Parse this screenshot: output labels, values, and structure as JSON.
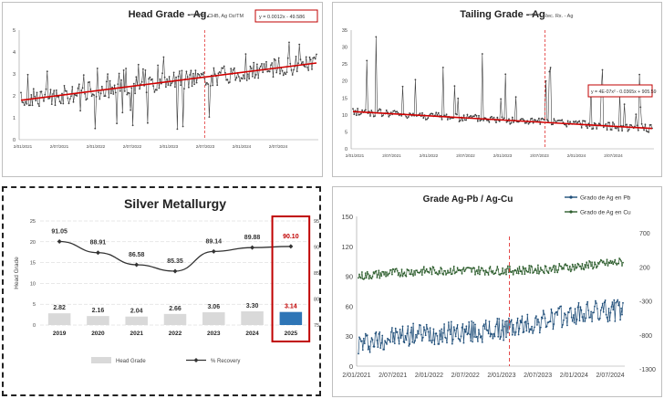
{
  "chart_data": [
    {
      "id": "head-grade",
      "type": "line",
      "title": "Head Grade - Ag.",
      "legend": "CHB, Ag Oz/TM",
      "equation": "y = 0.0012x - 49.586",
      "x_tick_labels": [
        "2/01/2021",
        "2/07/2021",
        "2/01/2022",
        "2/07/2022",
        "2/01/2023",
        "2/07/2023",
        "2/01/2024",
        "2/07/2024"
      ],
      "y_tick_labels": [
        "0",
        "1",
        "2",
        "3",
        "4",
        "5"
      ],
      "ylim": [
        0,
        5
      ],
      "trend": {
        "start": 1.8,
        "end": 3.5
      },
      "marker_position": 0.62,
      "colors": {
        "series": "#404040",
        "trend": "#d00000",
        "marker": "#e03030"
      }
    },
    {
      "id": "tailing-grade",
      "type": "line",
      "title": "Tailing Grade - Ag",
      "legend": "Rec. Rx. - Ag",
      "equation": "y = 4E-07x² - 0.0365x + 905.59",
      "x_tick_labels": [
        "2/01/2021",
        "2/07/2021",
        "2/01/2022",
        "2/07/2022",
        "2/01/2023",
        "2/07/2023",
        "2/01/2024",
        "2/07/2024"
      ],
      "y_tick_labels": [
        "0",
        "5",
        "10",
        "15",
        "20",
        "25",
        "30",
        "35"
      ],
      "ylim": [
        0,
        35
      ],
      "trend": {
        "start": 11,
        "end": 6
      },
      "marker_position": 0.64,
      "colors": {
        "series": "#404040",
        "trend": "#d00000",
        "marker": "#e03030"
      }
    },
    {
      "id": "silver-metallurgy",
      "type": "bar",
      "title": "Silver Metallurgy",
      "ylabel": "Head Grade",
      "categories": [
        "2019",
        "2020",
        "2021",
        "2022",
        "2023",
        "2024",
        "2025"
      ],
      "series": [
        {
          "name": "Head Grade",
          "values": [
            2.82,
            2.16,
            2.04,
            2.66,
            3.06,
            3.3,
            3.14
          ],
          "labels": [
            "2.82",
            "2.16",
            "2.04",
            "2.66",
            "3.06",
            "3.30",
            "3.14"
          ]
        },
        {
          "name": "% Recovery",
          "values": [
            91.05,
            88.91,
            86.58,
            85.35,
            89.14,
            89.88,
            90.1
          ],
          "labels": [
            "91.05",
            "88.91",
            "86.58",
            "85.35",
            "89.14",
            "89.88",
            "90.10"
          ]
        }
      ],
      "ylim": [
        0,
        25
      ],
      "y2lim": [
        75,
        95
      ],
      "y_tick_labels": [
        "0",
        "5",
        "10",
        "15",
        "20",
        "25"
      ],
      "y2_tick_labels": [
        "75",
        "80",
        "85",
        "90",
        "95"
      ],
      "highlight": "2025",
      "colors": {
        "bar": "#d9d9d9",
        "bar_highlight": "#2e75b6",
        "line": "#333333",
        "highlight": "#c00000"
      }
    },
    {
      "id": "grade-pb-cu",
      "type": "line",
      "title": "Grade Ag-Pb / Ag-Cu",
      "series": [
        {
          "name": "Grado de Ag en Pb",
          "color": "#1f4e79",
          "range": [
            10,
            70
          ],
          "start": 22,
          "end": 55
        },
        {
          "name": "Grado de Ag en Cu",
          "color": "#2e5e2e",
          "range": [
            80,
            120
          ],
          "start": 90,
          "end": 103
        }
      ],
      "x_tick_labels": [
        "2/01/2021",
        "2/07/2021",
        "2/01/2022",
        "2/07/2022",
        "2/01/2023",
        "2/07/2023",
        "2/01/2024",
        "2/07/2024"
      ],
      "y_tick_labels": [
        "0",
        "30",
        "60",
        "90",
        "120",
        "150"
      ],
      "y2_tick_labels": [
        "700",
        "200",
        "-300",
        "-800",
        "-1300"
      ],
      "ylim": [
        0,
        150
      ],
      "marker_position": 0.57
    }
  ]
}
